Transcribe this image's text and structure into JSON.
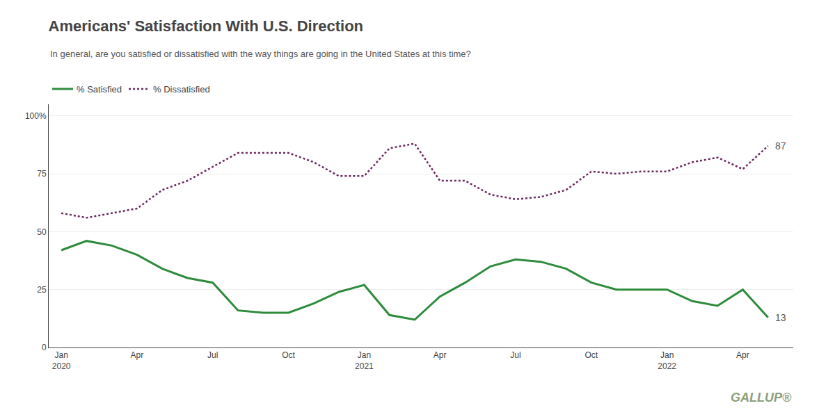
{
  "chart_data": {
    "type": "line",
    "title": "Americans' Satisfaction With U.S. Direction",
    "subtitle": "In general, are you satisfied or dissatisfied with the way things are going in the United States at this time?",
    "categories": [
      "Jan\n2020",
      null,
      null,
      "Apr",
      null,
      null,
      "Jul",
      null,
      null,
      "Oct",
      null,
      null,
      "Jan\n2021",
      null,
      null,
      "Apr",
      null,
      null,
      "Jul",
      null,
      null,
      "Oct",
      null,
      null,
      "Jan\n2022",
      null,
      null,
      "Apr",
      null
    ],
    "series": [
      {
        "name": "% Satisfied",
        "color": "#2e8b3c",
        "line_style": "solid",
        "values": [
          42,
          46,
          44,
          40,
          34,
          30,
          28,
          16,
          15,
          15,
          19,
          24,
          27,
          14,
          12,
          22,
          28,
          35,
          38,
          37,
          34,
          28,
          25,
          25,
          25,
          20,
          18,
          25,
          13
        ]
      },
      {
        "name": "% Dissatisfied",
        "color": "#6b2a5e",
        "line_style": "dotted",
        "values": [
          58,
          56,
          58,
          60,
          68,
          72,
          78,
          84,
          84,
          84,
          80,
          74,
          74,
          86,
          88,
          72,
          72,
          66,
          64,
          65,
          68,
          76,
          75,
          76,
          76,
          80,
          82,
          77,
          87
        ]
      }
    ],
    "annotations": [
      "13",
      "87",
      "GALLUP®"
    ],
    "ylim": [
      0,
      105
    ],
    "yticks": [
      0,
      25,
      50,
      75,
      {
        "value": 100,
        "label": "100%"
      }
    ],
    "grid": true,
    "legend": "upper left"
  }
}
